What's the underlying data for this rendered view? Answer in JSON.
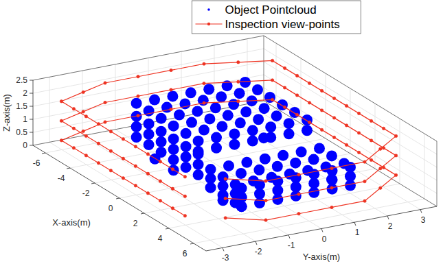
{
  "chart_data": {
    "type": "scatter3d",
    "xlabel": "X-axis(m)",
    "ylabel": "Y-axis(m)",
    "zlabel": "Z-axis(m)",
    "xlim": [
      -7,
      7
    ],
    "ylim": [
      -3.5,
      3.5
    ],
    "zlim": [
      0,
      2.5
    ],
    "xticks": [
      -6,
      -4,
      -2,
      0,
      2,
      4,
      6
    ],
    "yticks": [
      -3,
      -2,
      -1,
      0,
      1,
      2,
      3
    ],
    "zticks": [
      0,
      0.5,
      1,
      1.5,
      2,
      2.5
    ],
    "grid": true,
    "legend": "north",
    "series": [
      {
        "name": "Object Pointcloud",
        "type": "scatter",
        "color": "#0000ff",
        "marker": "point",
        "line_style": "none",
        "x": [
          -4.5,
          -4.5,
          -4.5,
          -4.5,
          -4.5,
          -4.5,
          -4.5,
          -3.5,
          -3.5,
          -3.5,
          -3.5,
          -3.5,
          -3.5,
          -3.5,
          -2.5,
          -2.5,
          -2.5,
          -2.5,
          -2.5,
          -2.5,
          -2.5,
          -1.5,
          -1.5,
          -1.5,
          -1.5,
          -1.5,
          -1.5,
          -1.5,
          -0.5,
          -0.5,
          -0.5,
          -0.5,
          -0.5,
          -0.5,
          -0.5,
          0.5,
          0.5,
          0.5,
          0.5,
          0.5,
          0.5,
          0.5,
          -4.5,
          -4.5,
          -4.5,
          -3.5,
          -3.5,
          -3.5,
          -2.5,
          -2.5,
          -2.5,
          -1.5,
          -1.5,
          -1.5,
          -0.5,
          -0.5,
          -0.5,
          0.5,
          0.5,
          0.5,
          0.5,
          0.5,
          0.5,
          0.5,
          0.5,
          0.5,
          0.5,
          1.5,
          1.5,
          1.5,
          1.5,
          1.5,
          1.5,
          1.5,
          2.5,
          2.5,
          2.5,
          2.5,
          2.5,
          2.5,
          2.5,
          3.5,
          3.5,
          3.5,
          3.5,
          3.5,
          3.5,
          3.5,
          4,
          4,
          4,
          4,
          4,
          4,
          4,
          1.5,
          1.5,
          2.5,
          2.5,
          3.5,
          3.5,
          4,
          4,
          4,
          4,
          4,
          4,
          4,
          4,
          4,
          4,
          4,
          4,
          4,
          4,
          4,
          4,
          -3,
          -1.5,
          2.5,
          -3,
          2.5
        ],
        "y": [
          -1.3,
          -0.75,
          -0.2,
          0.35,
          0.9,
          1.45,
          2,
          -1.3,
          -0.75,
          -0.2,
          0.35,
          0.9,
          1.45,
          2,
          -1.3,
          -0.75,
          -0.2,
          0.35,
          0.9,
          1.45,
          2,
          -1.3,
          -0.75,
          -0.2,
          0.35,
          0.9,
          1.45,
          2,
          -1.3,
          -0.75,
          -0.2,
          0.35,
          0.9,
          1.45,
          2,
          -1.3,
          -0.75,
          -0.2,
          0.35,
          0.9,
          1.45,
          2,
          -1.3,
          -1.3,
          -1.3,
          -1.3,
          -1.3,
          -1.3,
          -1.3,
          -1.3,
          -1.3,
          -1.3,
          -1.3,
          -1.3,
          -1.3,
          -1.3,
          -1.3,
          -1.3,
          -1.3,
          -1.3,
          -1.3,
          -0.75,
          -0.2,
          0.35,
          0.9,
          1.45,
          2,
          -1.3,
          -0.75,
          -0.2,
          0.35,
          0.9,
          1.45,
          2,
          -1.3,
          -0.75,
          -0.2,
          0.35,
          0.9,
          1.45,
          2,
          -1.3,
          -0.75,
          -0.2,
          0.35,
          0.9,
          1.45,
          2,
          -1.3,
          -0.75,
          -0.2,
          0.35,
          0.9,
          1.45,
          2,
          -1.3,
          -1.3,
          -1.3,
          -1.3,
          -1.3,
          -1.3,
          -1.3,
          -1.3,
          -1.3,
          -1.3,
          -0.75,
          -0.75,
          -0.2,
          -0.2,
          0.35,
          0.35,
          0.9,
          0.9,
          1.45,
          1.45,
          2,
          2,
          -1.3,
          -1.3,
          -1.3,
          2,
          2
        ],
        "z": [
          1.8,
          1.8,
          1.8,
          1.8,
          1.8,
          1.8,
          1.8,
          1.8,
          1.8,
          1.8,
          1.8,
          1.8,
          1.8,
          1.8,
          1.8,
          1.8,
          1.8,
          1.8,
          1.8,
          1.8,
          1.8,
          1.8,
          1.8,
          1.8,
          1.8,
          1.8,
          1.8,
          1.8,
          1.8,
          1.8,
          1.8,
          1.8,
          1.8,
          1.8,
          1.8,
          1.8,
          1.8,
          1.8,
          1.8,
          1.8,
          1.8,
          1.8,
          0.5,
          0.9,
          1.3,
          0.5,
          0.9,
          1.3,
          0.5,
          0.9,
          1.3,
          0.5,
          0.9,
          1.3,
          0.5,
          0.9,
          1.3,
          0.5,
          0.9,
          1.3,
          1.4,
          1.4,
          1.4,
          1.4,
          1.4,
          1.4,
          1.4,
          1,
          1,
          1,
          1,
          1,
          1,
          1,
          1,
          1,
          1,
          1,
          1,
          1,
          1,
          1,
          1,
          1,
          1,
          1,
          1,
          1,
          1,
          1,
          1,
          1,
          1,
          1,
          1,
          0.3,
          0.65,
          0.3,
          0.65,
          0.3,
          0.65,
          0.3,
          0.65,
          0.3,
          0.65,
          0.3,
          0.65,
          0.3,
          0.65,
          0.3,
          0.65,
          0.3,
          0.65,
          0.3,
          0.65,
          0.3,
          0.65,
          0.1,
          0.1,
          0.1,
          0.1,
          0.1
        ]
      },
      {
        "name": "Inspection view-points",
        "type": "line",
        "color": "#ee3322",
        "marker": "circle",
        "line_style": "solid",
        "x": [
          4.5,
          3.5,
          2.5,
          1.5,
          0.5,
          -0.5,
          -1.5,
          -2.5,
          -3.5,
          -4.5,
          -5.5,
          -6,
          -6.5,
          -6.5,
          -6.5,
          -6.5,
          -6,
          -5.5,
          -4.5,
          -3.5,
          -2.5,
          -1.5,
          -0.5,
          0.5,
          1.5,
          2.5,
          3.5,
          4.5,
          5.5,
          6.5,
          6.5,
          6.5,
          6.5,
          5.5,
          null,
          4.5,
          3.5,
          2.5,
          1.5,
          0.5,
          -0.5,
          -1.5,
          -2.5,
          -3.5,
          -4.5,
          -5.5,
          -6,
          -6.5,
          -6.5,
          -6.5,
          -6.5,
          -6,
          -5.5,
          -4.5,
          -3.5,
          -2.5,
          -1.5,
          -0.5,
          0.5,
          1.5,
          2.5,
          3.5,
          4.5,
          5.5,
          6.5,
          6.5,
          6.5,
          6.5,
          5.5,
          null,
          4.5,
          3.5,
          2.5,
          1.5,
          0.5,
          -0.5,
          -1.5,
          -2.5,
          -3.5,
          -4.5,
          -5.5,
          -6,
          -6.5,
          -6.5,
          -6.5,
          -6.5,
          -6,
          -5.5,
          -4.5,
          -3.5,
          -2.5,
          -1.5,
          -0.5,
          0.5,
          1.5,
          2.5,
          3.5,
          4.5,
          5.5,
          6.5,
          6.5,
          6.5,
          6.5,
          5.5
        ],
        "y": [
          -3.2,
          -3.2,
          -3.2,
          -3.2,
          -3.2,
          -3.2,
          -3.2,
          -3.2,
          -3.2,
          -3.2,
          -3.2,
          -2.35,
          -1.5,
          -0.5,
          0.5,
          1.5,
          2.35,
          3.2,
          3.2,
          3.2,
          3.2,
          3.2,
          3.2,
          3.2,
          3.2,
          3.2,
          3.2,
          3.2,
          2.35,
          1.5,
          0.5,
          -0.5,
          -1.5,
          -2.35,
          null,
          -3.2,
          -3.2,
          -3.2,
          -3.2,
          -3.2,
          -3.2,
          -3.2,
          -3.2,
          -3.2,
          -3.2,
          -3.2,
          -2.35,
          -1.5,
          -0.5,
          0.5,
          1.5,
          2.35,
          3.2,
          3.2,
          3.2,
          3.2,
          3.2,
          3.2,
          3.2,
          3.2,
          3.2,
          3.2,
          3.2,
          2.35,
          1.5,
          0.5,
          -0.5,
          -1.5,
          -2.35,
          null,
          -3.2,
          -3.2,
          -3.2,
          -3.2,
          -3.2,
          -3.2,
          -3.2,
          -3.2,
          -3.2,
          -3.2,
          -3.2,
          -2.35,
          -1.5,
          -0.5,
          0.5,
          1.5,
          2.35,
          3.2,
          3.2,
          3.2,
          3.2,
          3.2,
          3.2,
          3.2,
          3.2,
          3.2,
          3.2,
          3.2,
          2.35,
          1.5,
          0.5,
          -0.5,
          -1.5,
          -2.35
        ],
        "z": [
          0.55,
          0.55,
          0.55,
          0.55,
          0.55,
          0.55,
          0.55,
          0.55,
          0.55,
          0.55,
          0.55,
          0.55,
          0.55,
          0.55,
          0.55,
          0.55,
          0.55,
          0.55,
          0.55,
          0.55,
          0.55,
          0.55,
          0.55,
          0.55,
          0.55,
          0.55,
          0.55,
          0.55,
          0.55,
          0.55,
          0.55,
          0.55,
          0.55,
          0.55,
          null,
          1.3,
          1.3,
          1.3,
          1.3,
          1.3,
          1.3,
          1.3,
          1.3,
          1.3,
          1.3,
          1.3,
          1.3,
          1.3,
          1.3,
          1.3,
          1.3,
          1.3,
          1.3,
          1.3,
          1.3,
          1.3,
          1.3,
          1.3,
          1.3,
          1.3,
          1.3,
          1.3,
          1.3,
          1.3,
          1.3,
          1.3,
          1.3,
          1.3,
          1.3,
          null,
          2.05,
          2.05,
          2.05,
          2.05,
          2.05,
          2.05,
          2.05,
          2.05,
          2.05,
          2.05,
          2.05,
          2.05,
          2.05,
          2.05,
          2.05,
          2.05,
          2.05,
          2.05,
          2.05,
          2.05,
          2.05,
          2.05,
          2.05,
          2.05,
          2.05,
          2.05,
          2.05,
          2.05,
          2.05,
          2.05,
          2.05,
          2.05,
          2.05,
          2.05
        ]
      }
    ]
  }
}
